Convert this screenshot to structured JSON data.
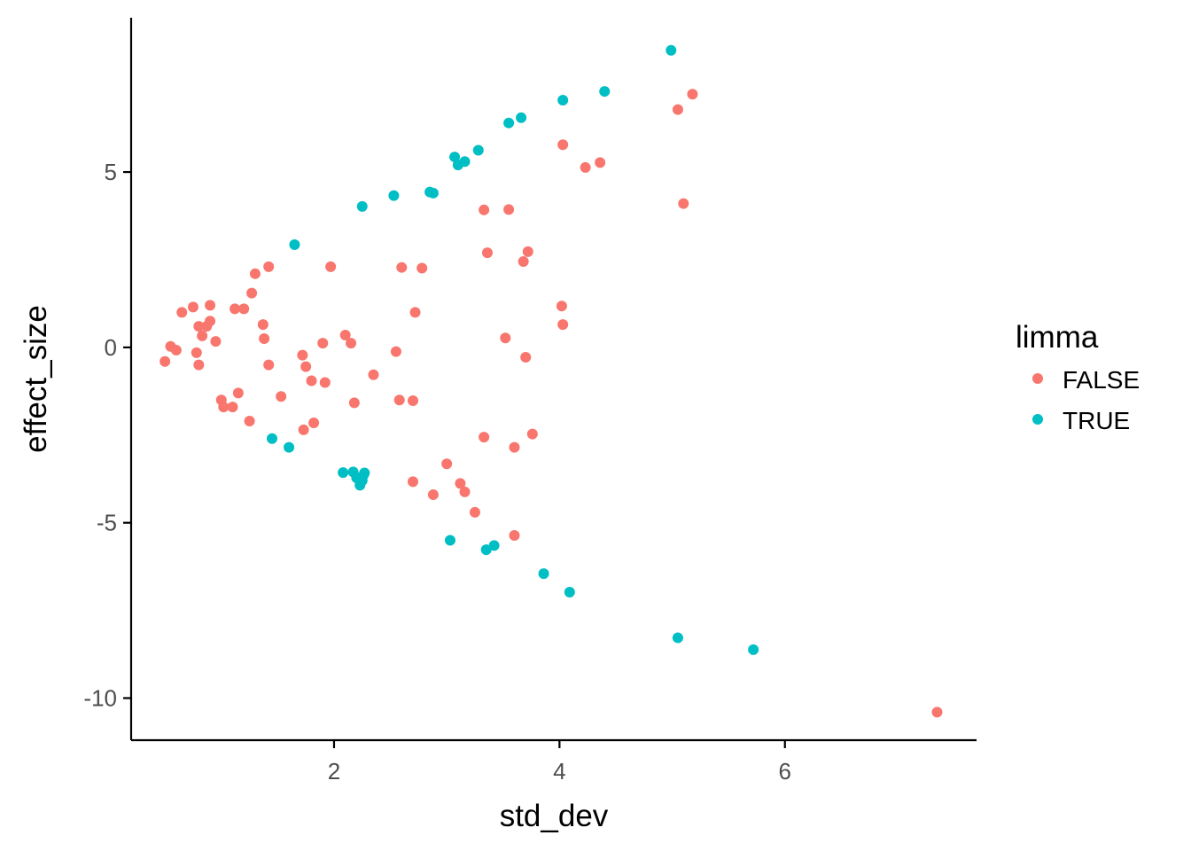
{
  "chart_data": {
    "type": "scatter",
    "xlabel": "std_dev",
    "ylabel": "effect_size",
    "xlim": [
      0.2,
      7.7
    ],
    "ylim": [
      -11.2,
      9.4
    ],
    "x_ticks": [
      2,
      4,
      6
    ],
    "y_ticks": [
      5,
      0,
      -5,
      -10
    ],
    "grid": false,
    "legend": {
      "title": "limma",
      "position": "right",
      "entries": [
        {
          "label": "FALSE",
          "color": "#F8766D"
        },
        {
          "label": "TRUE",
          "color": "#00BFC4"
        }
      ]
    },
    "series": [
      {
        "name": "FALSE",
        "color": "#F8766D",
        "points": [
          [
            0.5,
            -0.4
          ],
          [
            0.55,
            0.03
          ],
          [
            0.6,
            -0.08
          ],
          [
            0.65,
            1.0
          ],
          [
            0.75,
            1.15
          ],
          [
            0.78,
            -0.15
          ],
          [
            0.8,
            0.6
          ],
          [
            0.8,
            -0.5
          ],
          [
            0.83,
            0.33
          ],
          [
            0.87,
            0.6
          ],
          [
            0.9,
            1.2
          ],
          [
            0.9,
            0.75
          ],
          [
            0.95,
            0.17
          ],
          [
            1.0,
            -1.5
          ],
          [
            1.02,
            -1.7
          ],
          [
            1.1,
            -1.7
          ],
          [
            1.12,
            1.1
          ],
          [
            1.15,
            -1.3
          ],
          [
            1.2,
            1.1
          ],
          [
            1.25,
            -2.1
          ],
          [
            1.27,
            1.55
          ],
          [
            1.3,
            2.1
          ],
          [
            1.37,
            0.65
          ],
          [
            1.38,
            0.25
          ],
          [
            1.42,
            2.3
          ],
          [
            1.42,
            -0.5
          ],
          [
            1.53,
            -1.4
          ],
          [
            1.72,
            -0.22
          ],
          [
            1.73,
            -2.35
          ],
          [
            1.75,
            -0.55
          ],
          [
            1.8,
            -0.95
          ],
          [
            1.82,
            -2.15
          ],
          [
            1.9,
            0.12
          ],
          [
            1.92,
            -1.0
          ],
          [
            1.97,
            2.3
          ],
          [
            2.1,
            0.35
          ],
          [
            2.15,
            0.12
          ],
          [
            2.18,
            -1.58
          ],
          [
            2.35,
            -0.78
          ],
          [
            2.55,
            -0.12
          ],
          [
            2.58,
            -1.5
          ],
          [
            2.6,
            2.28
          ],
          [
            2.7,
            -3.83
          ],
          [
            2.7,
            -1.52
          ],
          [
            2.72,
            1.0
          ],
          [
            2.78,
            2.26
          ],
          [
            2.88,
            -4.2
          ],
          [
            3.0,
            -3.32
          ],
          [
            3.12,
            -3.88
          ],
          [
            3.16,
            -4.12
          ],
          [
            3.25,
            -4.7
          ],
          [
            3.33,
            -2.56
          ],
          [
            3.33,
            3.92
          ],
          [
            3.36,
            2.7
          ],
          [
            3.52,
            0.27
          ],
          [
            3.55,
            3.93
          ],
          [
            3.6,
            -2.85
          ],
          [
            3.6,
            -5.36
          ],
          [
            3.68,
            2.45
          ],
          [
            3.7,
            -0.28
          ],
          [
            3.72,
            2.73
          ],
          [
            3.76,
            -2.47
          ],
          [
            4.02,
            1.18
          ],
          [
            4.03,
            0.65
          ],
          [
            4.03,
            5.78
          ],
          [
            4.23,
            5.13
          ],
          [
            4.36,
            5.27
          ],
          [
            5.05,
            6.78
          ],
          [
            5.1,
            4.1
          ],
          [
            5.18,
            7.22
          ],
          [
            7.35,
            -10.4
          ]
        ]
      },
      {
        "name": "TRUE",
        "color": "#00BFC4",
        "points": [
          [
            1.45,
            -2.6
          ],
          [
            1.6,
            -2.85
          ],
          [
            1.65,
            2.93
          ],
          [
            2.08,
            -3.57
          ],
          [
            2.17,
            -3.55
          ],
          [
            2.2,
            -3.72
          ],
          [
            2.23,
            -3.93
          ],
          [
            2.25,
            -3.8
          ],
          [
            2.26,
            -3.65
          ],
          [
            2.27,
            -3.58
          ],
          [
            2.25,
            4.02
          ],
          [
            2.53,
            4.33
          ],
          [
            2.85,
            4.43
          ],
          [
            2.88,
            4.4
          ],
          [
            3.03,
            -5.5
          ],
          [
            3.07,
            5.43
          ],
          [
            3.1,
            5.2
          ],
          [
            3.16,
            5.3
          ],
          [
            3.28,
            5.62
          ],
          [
            3.35,
            -5.77
          ],
          [
            3.42,
            -5.65
          ],
          [
            3.55,
            6.4
          ],
          [
            3.66,
            6.55
          ],
          [
            3.86,
            -6.45
          ],
          [
            4.03,
            7.05
          ],
          [
            4.09,
            -6.98
          ],
          [
            4.4,
            7.3
          ],
          [
            4.99,
            8.47
          ],
          [
            5.05,
            -8.28
          ],
          [
            5.72,
            -8.62
          ]
        ]
      }
    ]
  }
}
